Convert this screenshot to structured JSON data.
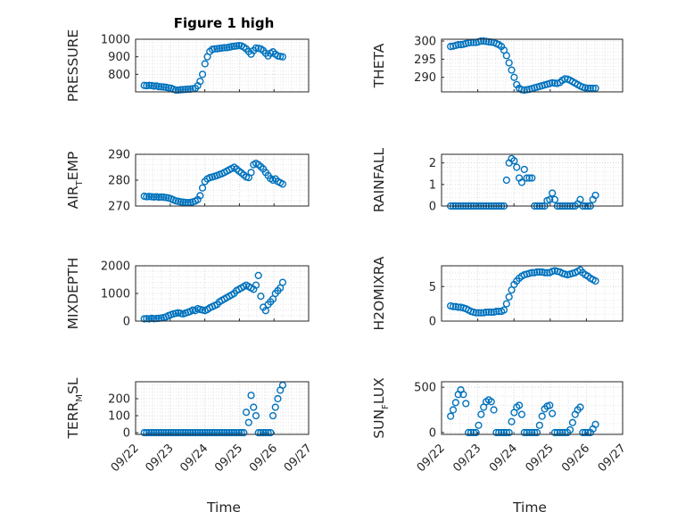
{
  "figure": {
    "title": "Figure 1 high",
    "xlabel": "Time"
  },
  "marker_color": "#0072BD",
  "chart_data": [
    {
      "type": "scatter",
      "ylabel": "PRESSURE",
      "ylabel_parts": [
        "PRESSURE"
      ],
      "xlim": [
        "09/22",
        "09/27"
      ],
      "ylim": [
        700,
        1000
      ],
      "yticks": [
        800,
        900,
        1000
      ],
      "x_range": [
        "09/22 06:00",
        "09/26 06:00"
      ],
      "values": [
        737,
        735,
        737,
        736,
        733,
        734,
        730,
        729,
        728,
        726,
        723,
        721,
        715,
        710,
        710,
        712,
        713,
        714,
        715,
        716,
        718,
        720,
        735,
        760,
        800,
        860,
        900,
        930,
        942,
        945,
        946,
        948,
        950,
        952,
        952,
        955,
        958,
        960,
        962,
        964,
        962,
        955,
        945,
        930,
        915,
        935,
        950,
        948,
        945,
        935,
        920,
        905,
        920,
        928,
        915,
        905,
        902,
        900
      ]
    },
    {
      "type": "scatter",
      "ylabel": "THETA",
      "ylabel_parts": [
        "THETA"
      ],
      "xlim": [
        "09/22",
        "09/27"
      ],
      "ylim": [
        286,
        300.5
      ],
      "yticks": [
        290,
        295,
        300
      ],
      "x_range": [
        "09/22 06:00",
        "09/26 06:00"
      ],
      "values": [
        298.5,
        298.6,
        298.8,
        299,
        299,
        299.1,
        299.3,
        299.5,
        299.6,
        299.6,
        299.6,
        299.8,
        300,
        300,
        299.9,
        299.8,
        299.7,
        299.6,
        299.3,
        299,
        298.5,
        297.5,
        296,
        294,
        292,
        290,
        288,
        287,
        286.6,
        286.5,
        286.6,
        286.7,
        286.9,
        287.1,
        287.3,
        287.5,
        287.7,
        287.9,
        288.1,
        288.3,
        288.5,
        288.4,
        288.3,
        288.6,
        289.2,
        289.6,
        289.5,
        289.2,
        288.8,
        288.4,
        288,
        287.6,
        287.3,
        287.1,
        287,
        287,
        287,
        287
      ]
    },
    {
      "type": "scatter",
      "ylabel": "AIRTEMP",
      "ylabel_parts": [
        "AIR",
        "T",
        "EMP"
      ],
      "xlim": [
        "09/22",
        "09/27"
      ],
      "ylim": [
        270,
        290
      ],
      "yticks": [
        270,
        280,
        290
      ],
      "x_range": [
        "09/22 06:00",
        "09/26 06:00"
      ],
      "values": [
        273.8,
        273.6,
        273.7,
        273.6,
        273.5,
        273.6,
        273.4,
        273.5,
        273.4,
        273.3,
        273.1,
        272.8,
        272.4,
        272,
        271.8,
        271.6,
        271.5,
        271.4,
        271.3,
        271.4,
        271.6,
        271.9,
        272.5,
        274,
        277,
        279.5,
        280.5,
        281,
        281.2,
        281.5,
        281.8,
        282.2,
        282.5,
        283,
        283.5,
        284,
        284.5,
        285,
        284.3,
        283.5,
        282.8,
        282,
        281.2,
        281,
        283,
        286,
        286.5,
        286,
        285.2,
        284.3,
        283,
        281.8,
        280.6,
        280,
        280.5,
        279.5,
        279,
        278.5
      ]
    },
    {
      "type": "scatter",
      "ylabel": "RAINFALL",
      "ylabel_parts": [
        "RAINFALL"
      ],
      "xlim": [
        "09/22",
        "09/27"
      ],
      "ylim": [
        0,
        2.4
      ],
      "yticks": [
        0,
        1,
        2
      ],
      "x_range": [
        "09/22 06:00",
        "09/26 06:00"
      ],
      "values": [
        0,
        0,
        0,
        0,
        0,
        0,
        0,
        0,
        0,
        0,
        0,
        0,
        0,
        0,
        0,
        0,
        0,
        0,
        0,
        0,
        0,
        0,
        1.2,
        2,
        2.2,
        2.1,
        1.8,
        1.3,
        1.1,
        1.7,
        1.3,
        1.3,
        1.3,
        0,
        0,
        0,
        0,
        0,
        0.25,
        0.3,
        0.6,
        0.3,
        0,
        0,
        0,
        0,
        0,
        0,
        0,
        0,
        0.1,
        0.3,
        0,
        0,
        0,
        0,
        0.3,
        0.5
      ]
    },
    {
      "type": "scatter",
      "ylabel": "MIXDEPTH",
      "ylabel_parts": [
        "MIXDEPTH"
      ],
      "xlim": [
        "09/22",
        "09/27"
      ],
      "ylim": [
        0,
        2000
      ],
      "yticks": [
        0,
        1000,
        2000
      ],
      "x_range": [
        "09/22 06:00",
        "09/26 06:00"
      ],
      "values": [
        80,
        90,
        80,
        100,
        85,
        95,
        100,
        110,
        130,
        150,
        200,
        230,
        260,
        280,
        300,
        280,
        260,
        290,
        320,
        350,
        400,
        380,
        450,
        420,
        400,
        380,
        420,
        480,
        520,
        560,
        600,
        700,
        750,
        800,
        850,
        900,
        950,
        1000,
        1100,
        1150,
        1200,
        1250,
        1300,
        1250,
        1200,
        1150,
        1300,
        1650,
        900,
        500,
        380,
        600,
        700,
        800,
        1000,
        1100,
        1200,
        1400
      ]
    },
    {
      "type": "scatter",
      "ylabel": "H2OMIXRA",
      "ylabel_parts": [
        "H2OMIXRA"
      ],
      "xlim": [
        "09/22",
        "09/27"
      ],
      "ylim": [
        0,
        8
      ],
      "yticks": [
        0,
        5
      ],
      "x_range": [
        "09/22 06:00",
        "09/26 06:00"
      ],
      "values": [
        2.2,
        2.1,
        2.1,
        2,
        2,
        1.9,
        1.8,
        1.6,
        1.4,
        1.3,
        1.2,
        1.2,
        1.2,
        1.2,
        1.3,
        1.3,
        1.3,
        1.3,
        1.4,
        1.4,
        1.4,
        1.6,
        2.5,
        3.5,
        4.5,
        5.3,
        5.8,
        6.2,
        6.5,
        6.7,
        6.8,
        6.9,
        7,
        7,
        7.1,
        7.1,
        7.1,
        7,
        7,
        7,
        7.2,
        7.3,
        7.2,
        7.1,
        6.9,
        6.8,
        6.7,
        6.8,
        6.9,
        7,
        7.2,
        7.4,
        7,
        6.7,
        6.5,
        6.2,
        6,
        5.8
      ]
    },
    {
      "type": "scatter",
      "ylabel": "TERRMSL",
      "ylabel_parts": [
        "TERR",
        "M",
        "SL"
      ],
      "xlim": [
        "09/22",
        "09/27"
      ],
      "ylim": [
        -10,
        300
      ],
      "yticks": [
        0,
        100,
        200
      ],
      "x_range": [
        "09/22 06:00",
        "09/26 06:00"
      ],
      "values": [
        0,
        0,
        0,
        0,
        0,
        0,
        0,
        0,
        0,
        0,
        0,
        0,
        0,
        0,
        0,
        0,
        0,
        0,
        0,
        0,
        0,
        0,
        0,
        0,
        0,
        0,
        0,
        0,
        0,
        0,
        0,
        0,
        0,
        0,
        0,
        0,
        0,
        0,
        0,
        0,
        0,
        0,
        120,
        60,
        220,
        150,
        100,
        0,
        0,
        0,
        0,
        0,
        0,
        100,
        150,
        200,
        250,
        280
      ]
    },
    {
      "type": "scatter",
      "ylabel": "SUNFLUX",
      "ylabel_parts": [
        "SUN",
        "F",
        "LUX"
      ],
      "xlim": [
        "09/22",
        "09/27"
      ],
      "ylim": [
        -20,
        560
      ],
      "yticks": [
        0,
        500
      ],
      "x_range": [
        "09/22 06:00",
        "09/26 06:00"
      ],
      "values": [
        180,
        250,
        330,
        420,
        470,
        420,
        320,
        0,
        0,
        0,
        0,
        80,
        200,
        280,
        340,
        360,
        340,
        250,
        0,
        0,
        0,
        0,
        0,
        0,
        120,
        220,
        280,
        300,
        200,
        0,
        0,
        0,
        0,
        0,
        0,
        80,
        180,
        260,
        290,
        300,
        210,
        0,
        0,
        0,
        0,
        0,
        0,
        30,
        110,
        200,
        250,
        280,
        0,
        0,
        0,
        0,
        40,
        90
      ]
    }
  ]
}
